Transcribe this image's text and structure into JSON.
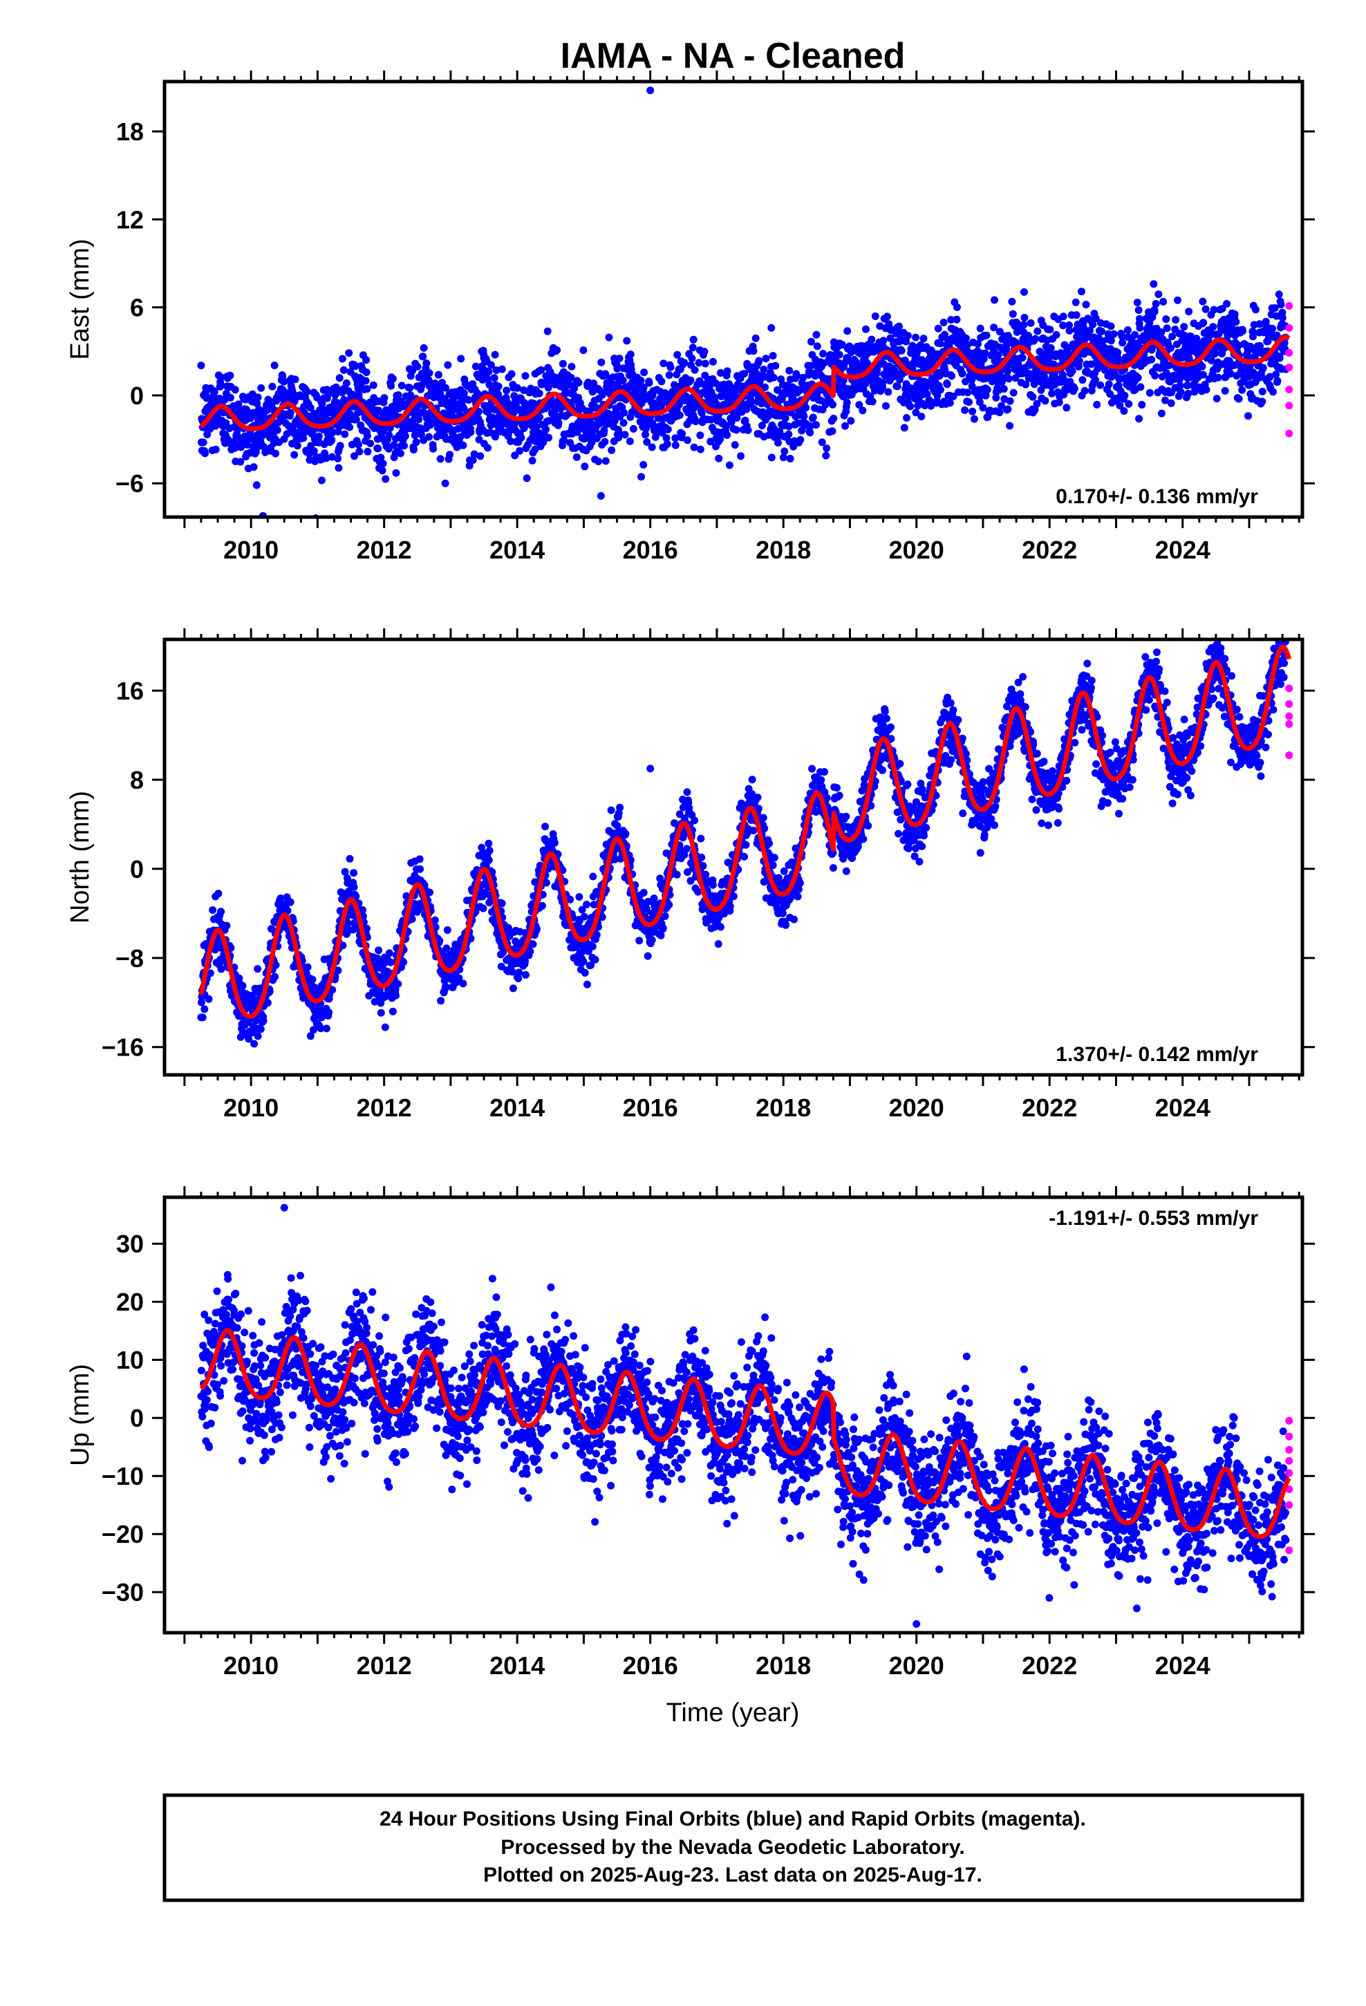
{
  "title": "IAMA  - NA - Cleaned",
  "x_axis_label": "Time (year)",
  "footer": {
    "line1": "24 Hour Positions Using Final Orbits (blue) and Rapid Orbits (magenta).",
    "line2": "Processed by the Nevada Geodetic Laboratory.",
    "line3": "Plotted on 2025-Aug-23. Last data on 2025-Aug-17."
  },
  "colors": {
    "final_orbits": "#0000ff",
    "rapid_orbits": "#ff00ff",
    "model": "#ff0000"
  },
  "chart_data": [
    {
      "type": "scatter",
      "component": "east",
      "ylabel": "East (mm)",
      "xlim": [
        2008.7,
        2025.8
      ],
      "ylim": [
        -8.3,
        21.4
      ],
      "yticks": [
        -6,
        0,
        6,
        12,
        18
      ],
      "ytick_labels": [
        "−6",
        "0",
        "6",
        "12",
        "18"
      ],
      "xticks": [
        2010,
        2012,
        2014,
        2016,
        2018,
        2020,
        2022,
        2024
      ],
      "xtick_labels": [
        "2010",
        "2012",
        "2014",
        "2016",
        "2018",
        "2020",
        "2022",
        "2024"
      ],
      "rate_label": "0.170+/- 0.136 mm/yr",
      "rate_position": "bottom-right",
      "model": {
        "intercept": -1.8,
        "slope": 0.17,
        "rate_year": 2009.0,
        "offsets": [
          [
            2018.75,
            2.0
          ]
        ],
        "annual_amp": 0.8,
        "annual_phase": 0.55,
        "semiannual_amp": 0.15
      },
      "scatter": {
        "start": 2009.25,
        "end": 2025.55,
        "noise_sd": 1.5,
        "outliers": [
          [
            2009.3,
            -3.8
          ],
          [
            2016.0,
            20.8
          ]
        ]
      },
      "rapid_points": [
        [
          2025.6,
          6.1
        ],
        [
          2025.6,
          4.6
        ],
        [
          2025.6,
          2.9
        ],
        [
          2025.6,
          1.9
        ],
        [
          2025.6,
          0.4
        ],
        [
          2025.6,
          -0.7
        ],
        [
          2025.6,
          -2.6
        ]
      ]
    },
    {
      "type": "scatter",
      "component": "north",
      "ylabel": "North (mm)",
      "xlim": [
        2008.7,
        2025.8
      ],
      "ylim": [
        -18.5,
        20.6
      ],
      "yticks": [
        -16,
        -8,
        0,
        8,
        16
      ],
      "ytick_labels": [
        "−16",
        "−8",
        "0",
        "8",
        "16"
      ],
      "xticks": [
        2010,
        2012,
        2014,
        2016,
        2018,
        2020,
        2022,
        2024
      ],
      "xtick_labels": [
        "2010",
        "2012",
        "2014",
        "2016",
        "2018",
        "2020",
        "2022",
        "2024"
      ],
      "rate_label": "1.370+/- 0.142 mm/yr",
      "rate_position": "bottom-right",
      "model": {
        "intercept": -11.0,
        "slope": 1.37,
        "rate_year": 2009.0,
        "offsets": [
          [
            2018.75,
            3.5
          ]
        ],
        "annual_amp": 4.2,
        "annual_phase": 0.5,
        "semiannual_amp": 0.6
      },
      "scatter": {
        "start": 2009.25,
        "end": 2025.55,
        "noise_sd": 1.3,
        "outliers": [
          [
            2009.3,
            -12.6
          ],
          [
            2016.0,
            9.0
          ]
        ]
      },
      "rapid_points": [
        [
          2025.6,
          16.2
        ],
        [
          2025.6,
          14.8
        ],
        [
          2025.6,
          13.7
        ],
        [
          2025.6,
          13.0
        ],
        [
          2025.6,
          10.2
        ]
      ]
    },
    {
      "type": "scatter",
      "component": "up",
      "ylabel": "Up (mm)",
      "xlim": [
        2008.7,
        2025.8
      ],
      "ylim": [
        -37,
        38
      ],
      "yticks": [
        -30,
        -20,
        -10,
        0,
        10,
        20,
        30
      ],
      "ytick_labels": [
        "−30",
        "−20",
        "−10",
        "0",
        "10",
        "20",
        "30"
      ],
      "xticks": [
        2010,
        2012,
        2014,
        2016,
        2018,
        2020,
        2022,
        2024
      ],
      "xtick_labels": [
        "2010",
        "2012",
        "2014",
        "2016",
        "2018",
        "2020",
        "2022",
        "2024"
      ],
      "rate_label": "-1.191+/- 0.553 mm/yr",
      "rate_position": "top-right",
      "model": {
        "intercept": 9.5,
        "slope": -1.191,
        "rate_year": 2009.0,
        "offsets": [
          [
            2018.75,
            -6.0
          ]
        ],
        "annual_amp": 5.5,
        "annual_phase": 0.65,
        "semiannual_amp": 0.8
      },
      "scatter": {
        "start": 2009.25,
        "end": 2025.55,
        "noise_sd": 5.0,
        "outliers": [
          [
            2009.3,
            17.8
          ],
          [
            2010.5,
            36.2
          ],
          [
            2011.2,
            -10.5
          ],
          [
            2020.0,
            -35.5
          ]
        ]
      },
      "rapid_points": [
        [
          2025.6,
          -0.5
        ],
        [
          2025.6,
          -3.2
        ],
        [
          2025.6,
          -5.5
        ],
        [
          2025.6,
          -7.4
        ],
        [
          2025.6,
          -9.5
        ],
        [
          2025.6,
          -12.3
        ],
        [
          2025.6,
          -15.0
        ],
        [
          2025.6,
          -22.8
        ]
      ]
    }
  ]
}
